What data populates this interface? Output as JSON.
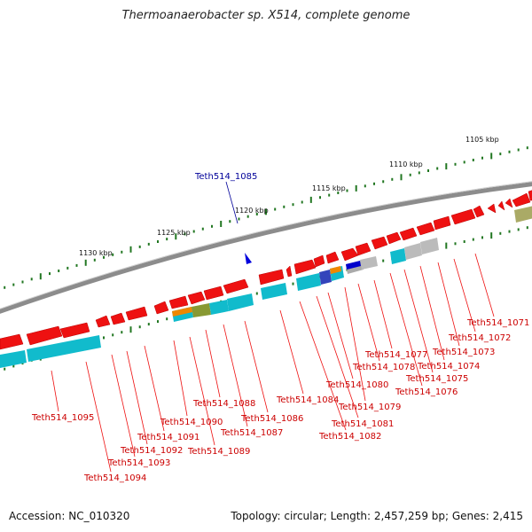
{
  "title": "Thermoanaerobacter sp. X514, complete genome",
  "footer": {
    "accession": "Accession: NC_010320",
    "summary": "Topology: circular; Length: 2,457,259 bp; Genes: 2,415"
  },
  "scale_labels": [
    "1105 kbp",
    "1110 kbp",
    "1115 kbp",
    "1120 kbp",
    "1125 kbp",
    "1130 kbp"
  ],
  "highlighted_gene": "Teth514_1085",
  "gene_labels": [
    "Teth514_1071",
    "Teth514_1072",
    "Teth514_1073",
    "Teth514_1074",
    "Teth514_1075",
    "Teth514_1076",
    "Teth514_1077",
    "Teth514_1078",
    "Teth514_1079",
    "Teth514_1080",
    "Teth514_1081",
    "Teth514_1082",
    "Teth514_1084",
    "Teth514_1086",
    "Teth514_1087",
    "Teth514_1088",
    "Teth514_1089",
    "Teth514_1090",
    "Teth514_1091",
    "Teth514_1092",
    "Teth514_1093",
    "Teth514_1094",
    "Teth514_1095"
  ],
  "colors": {
    "gene": "#ee1111",
    "cog": "#11bbcc",
    "backbone": "#888888",
    "label": "#cc0000",
    "highlight": "#000099",
    "tick": "#227722"
  }
}
